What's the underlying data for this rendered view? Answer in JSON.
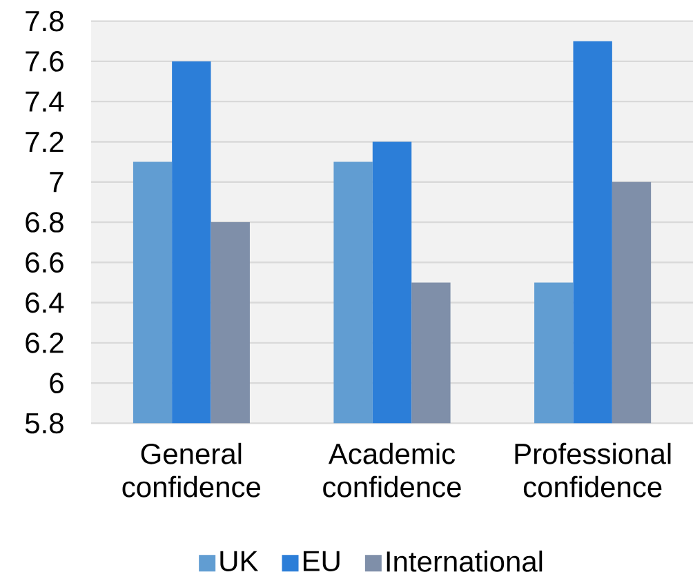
{
  "chart_data": {
    "type": "bar",
    "categories": [
      "General confidence",
      "Academic confidence",
      "Professional confidence"
    ],
    "series": [
      {
        "name": "UK",
        "color": "#619dd2",
        "values": [
          7.1,
          7.1,
          6.5
        ]
      },
      {
        "name": "EU",
        "color": "#2c7ed8",
        "values": [
          7.6,
          7.2,
          7.7
        ]
      },
      {
        "name": "International",
        "color": "#7f8fa9",
        "values": [
          6.8,
          6.5,
          7
        ]
      }
    ],
    "ylim": [
      5.8,
      7.8
    ],
    "yticks": [
      5.8,
      6,
      6.2,
      6.4,
      6.6,
      6.8,
      7,
      7.2,
      7.4,
      7.6,
      7.8
    ],
    "grid": "y",
    "legend": "bottom"
  }
}
